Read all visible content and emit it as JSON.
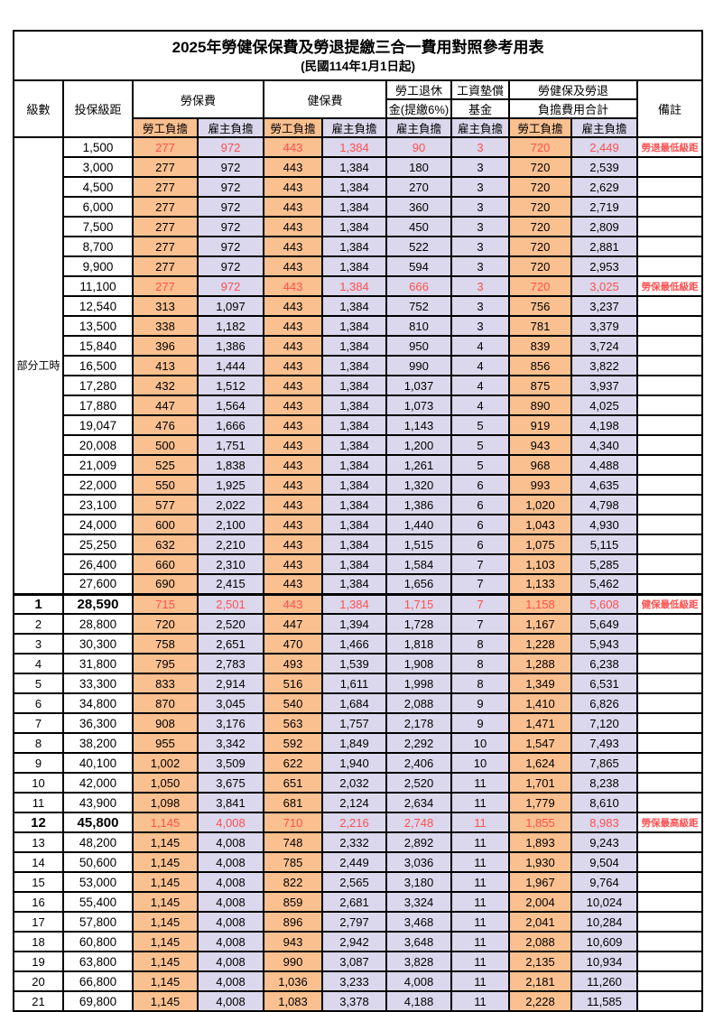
{
  "title": "2025年勞健保保費及勞退提繳三合一費用對照參考用表",
  "subtitle": "(民國114年1月1日起)",
  "header": {
    "level": "級數",
    "bracket": "投保級距",
    "labor_ins": "勞保費",
    "health_ins": "健保費",
    "pension_line1": "勞工退休",
    "pension_line2": "金(提繳6%)",
    "wage_fund_line1": "工資墊償",
    "wage_fund_line2": "基金",
    "total_line1": "勞健保及勞退",
    "total_line2": "負擔費用合計",
    "remark": "備註",
    "employee_label": "勞工負擔",
    "employer_label": "雇主負擔"
  },
  "colors": {
    "employee_bg": "#FAC090",
    "employer_bg": "#DBD7EC",
    "highlight_red": "#FF5050",
    "border": "#000000"
  },
  "part_time_label": "部分工時",
  "rows": [
    {
      "groupSpan": 23,
      "bracket": "1,500",
      "v": [
        "277",
        "972",
        "443",
        "1,384",
        "90",
        "3",
        "720",
        "2,449"
      ],
      "remark": "勞退最低級距",
      "red": true
    },
    {
      "bracket": "3,000",
      "v": [
        "277",
        "972",
        "443",
        "1,384",
        "180",
        "3",
        "720",
        "2,539"
      ]
    },
    {
      "bracket": "4,500",
      "v": [
        "277",
        "972",
        "443",
        "1,384",
        "270",
        "3",
        "720",
        "2,629"
      ]
    },
    {
      "bracket": "6,000",
      "v": [
        "277",
        "972",
        "443",
        "1,384",
        "360",
        "3",
        "720",
        "2,719"
      ]
    },
    {
      "bracket": "7,500",
      "v": [
        "277",
        "972",
        "443",
        "1,384",
        "450",
        "3",
        "720",
        "2,809"
      ]
    },
    {
      "bracket": "8,700",
      "v": [
        "277",
        "972",
        "443",
        "1,384",
        "522",
        "3",
        "720",
        "2,881"
      ]
    },
    {
      "bracket": "9,900",
      "v": [
        "277",
        "972",
        "443",
        "1,384",
        "594",
        "3",
        "720",
        "2,953"
      ]
    },
    {
      "bracket": "11,100",
      "v": [
        "277",
        "972",
        "443",
        "1,384",
        "666",
        "3",
        "720",
        "3,025"
      ],
      "remark": "勞保最低級距",
      "red": true
    },
    {
      "bracket": "12,540",
      "v": [
        "313",
        "1,097",
        "443",
        "1,384",
        "752",
        "3",
        "756",
        "3,237"
      ]
    },
    {
      "bracket": "13,500",
      "v": [
        "338",
        "1,182",
        "443",
        "1,384",
        "810",
        "3",
        "781",
        "3,379"
      ]
    },
    {
      "bracket": "15,840",
      "v": [
        "396",
        "1,386",
        "443",
        "1,384",
        "950",
        "4",
        "839",
        "3,724"
      ]
    },
    {
      "bracket": "16,500",
      "v": [
        "413",
        "1,444",
        "443",
        "1,384",
        "990",
        "4",
        "856",
        "3,822"
      ]
    },
    {
      "bracket": "17,280",
      "v": [
        "432",
        "1,512",
        "443",
        "1,384",
        "1,037",
        "4",
        "875",
        "3,937"
      ]
    },
    {
      "bracket": "17,880",
      "v": [
        "447",
        "1,564",
        "443",
        "1,384",
        "1,073",
        "4",
        "890",
        "4,025"
      ]
    },
    {
      "bracket": "19,047",
      "v": [
        "476",
        "1,666",
        "443",
        "1,384",
        "1,143",
        "5",
        "919",
        "4,198"
      ]
    },
    {
      "bracket": "20,008",
      "v": [
        "500",
        "1,751",
        "443",
        "1,384",
        "1,200",
        "5",
        "943",
        "4,340"
      ]
    },
    {
      "bracket": "21,009",
      "v": [
        "525",
        "1,838",
        "443",
        "1,384",
        "1,261",
        "5",
        "968",
        "4,488"
      ]
    },
    {
      "bracket": "22,000",
      "v": [
        "550",
        "1,925",
        "443",
        "1,384",
        "1,320",
        "6",
        "993",
        "4,635"
      ]
    },
    {
      "bracket": "23,100",
      "v": [
        "577",
        "2,022",
        "443",
        "1,384",
        "1,386",
        "6",
        "1,020",
        "4,798"
      ]
    },
    {
      "bracket": "24,000",
      "v": [
        "600",
        "2,100",
        "443",
        "1,384",
        "1,440",
        "6",
        "1,043",
        "4,930"
      ]
    },
    {
      "bracket": "25,250",
      "v": [
        "632",
        "2,210",
        "443",
        "1,384",
        "1,515",
        "6",
        "1,075",
        "5,115"
      ]
    },
    {
      "bracket": "26,400",
      "v": [
        "660",
        "2,310",
        "443",
        "1,384",
        "1,584",
        "7",
        "1,103",
        "5,285"
      ]
    },
    {
      "bracket": "27,600",
      "v": [
        "690",
        "2,415",
        "443",
        "1,384",
        "1,656",
        "7",
        "1,133",
        "5,462"
      ]
    },
    {
      "level": "1",
      "bracket": "28,590",
      "v": [
        "715",
        "2,501",
        "443",
        "1,384",
        "1,715",
        "7",
        "1,158",
        "5,608"
      ],
      "remark": "健保最低級距",
      "red": true,
      "bold": true,
      "sectionStart": true
    },
    {
      "level": "2",
      "bracket": "28,800",
      "v": [
        "720",
        "2,520",
        "447",
        "1,394",
        "1,728",
        "7",
        "1,167",
        "5,649"
      ]
    },
    {
      "level": "3",
      "bracket": "30,300",
      "v": [
        "758",
        "2,651",
        "470",
        "1,466",
        "1,818",
        "8",
        "1,228",
        "5,943"
      ]
    },
    {
      "level": "4",
      "bracket": "31,800",
      "v": [
        "795",
        "2,783",
        "493",
        "1,539",
        "1,908",
        "8",
        "1,288",
        "6,238"
      ]
    },
    {
      "level": "5",
      "bracket": "33,300",
      "v": [
        "833",
        "2,914",
        "516",
        "1,611",
        "1,998",
        "8",
        "1,349",
        "6,531"
      ]
    },
    {
      "level": "6",
      "bracket": "34,800",
      "v": [
        "870",
        "3,045",
        "540",
        "1,684",
        "2,088",
        "9",
        "1,410",
        "6,826"
      ]
    },
    {
      "level": "7",
      "bracket": "36,300",
      "v": [
        "908",
        "3,176",
        "563",
        "1,757",
        "2,178",
        "9",
        "1,471",
        "7,120"
      ]
    },
    {
      "level": "8",
      "bracket": "38,200",
      "v": [
        "955",
        "3,342",
        "592",
        "1,849",
        "2,292",
        "10",
        "1,547",
        "7,493"
      ]
    },
    {
      "level": "9",
      "bracket": "40,100",
      "v": [
        "1,002",
        "3,509",
        "622",
        "1,940",
        "2,406",
        "10",
        "1,624",
        "7,865"
      ]
    },
    {
      "level": "10",
      "bracket": "42,000",
      "v": [
        "1,050",
        "3,675",
        "651",
        "2,032",
        "2,520",
        "11",
        "1,701",
        "8,238"
      ]
    },
    {
      "level": "11",
      "bracket": "43,900",
      "v": [
        "1,098",
        "3,841",
        "681",
        "2,124",
        "2,634",
        "11",
        "1,779",
        "8,610"
      ]
    },
    {
      "level": "12",
      "bracket": "45,800",
      "v": [
        "1,145",
        "4,008",
        "710",
        "2,216",
        "2,748",
        "11",
        "1,855",
        "8,983"
      ],
      "remark": "勞保最高級距",
      "red": true,
      "bold": true
    },
    {
      "level": "13",
      "bracket": "48,200",
      "v": [
        "1,145",
        "4,008",
        "748",
        "2,332",
        "2,892",
        "11",
        "1,893",
        "9,243"
      ]
    },
    {
      "level": "14",
      "bracket": "50,600",
      "v": [
        "1,145",
        "4,008",
        "785",
        "2,449",
        "3,036",
        "11",
        "1,930",
        "9,504"
      ]
    },
    {
      "level": "15",
      "bracket": "53,000",
      "v": [
        "1,145",
        "4,008",
        "822",
        "2,565",
        "3,180",
        "11",
        "1,967",
        "9,764"
      ]
    },
    {
      "level": "16",
      "bracket": "55,400",
      "v": [
        "1,145",
        "4,008",
        "859",
        "2,681",
        "3,324",
        "11",
        "2,004",
        "10,024"
      ]
    },
    {
      "level": "17",
      "bracket": "57,800",
      "v": [
        "1,145",
        "4,008",
        "896",
        "2,797",
        "3,468",
        "11",
        "2,041",
        "10,284"
      ]
    },
    {
      "level": "18",
      "bracket": "60,800",
      "v": [
        "1,145",
        "4,008",
        "943",
        "2,942",
        "3,648",
        "11",
        "2,088",
        "10,609"
      ]
    },
    {
      "level": "19",
      "bracket": "63,800",
      "v": [
        "1,145",
        "4,008",
        "990",
        "3,087",
        "3,828",
        "11",
        "2,135",
        "10,934"
      ]
    },
    {
      "level": "20",
      "bracket": "66,800",
      "v": [
        "1,145",
        "4,008",
        "1,036",
        "3,233",
        "4,008",
        "11",
        "2,181",
        "11,260"
      ]
    },
    {
      "level": "21",
      "bracket": "69,800",
      "v": [
        "1,145",
        "4,008",
        "1,083",
        "3,378",
        "4,188",
        "11",
        "2,228",
        "11,585"
      ]
    }
  ]
}
